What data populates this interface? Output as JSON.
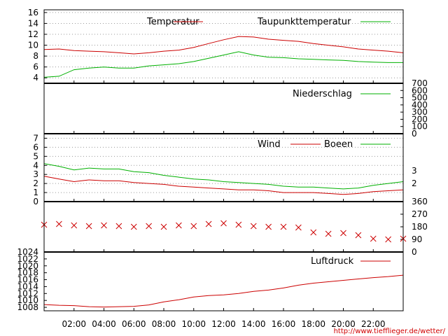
{
  "colors": {
    "red": "#cc0000",
    "green": "#00b000",
    "grid": "#9a9a9a",
    "frame": "#000000"
  },
  "credit_url": "http://www.tiefflieger.de/wetter/",
  "x_axis": {
    "range_hours": [
      0,
      24
    ],
    "tick_hours": [
      2,
      4,
      6,
      8,
      10,
      12,
      14,
      16,
      18,
      20,
      22
    ],
    "tick_labels": [
      "02:00",
      "04:00",
      "06:00",
      "08:00",
      "10:00",
      "12:00",
      "14:00",
      "16:00",
      "18:00",
      "20:00",
      "22:00"
    ]
  },
  "chart_data": [
    {
      "type": "line",
      "id": "temperature",
      "y_range": [
        3,
        16.5
      ],
      "y_ticks": [
        4,
        6,
        8,
        10,
        12,
        14,
        16
      ],
      "y_tick_labels": [
        "4",
        "6",
        "8",
        "10",
        "12",
        "14",
        "16"
      ],
      "grid": true,
      "legend_position": "top",
      "series": [
        {
          "name": "Temperatur",
          "color": "#cc0000",
          "x": [
            0,
            1,
            2,
            3,
            4,
            5,
            6,
            7,
            8,
            9,
            10,
            11,
            12,
            13,
            14,
            15,
            16,
            17,
            18,
            19,
            20,
            21,
            22,
            23,
            24
          ],
          "y": [
            9.2,
            9.3,
            9.0,
            8.9,
            8.8,
            8.6,
            8.4,
            8.6,
            8.9,
            9.1,
            9.6,
            10.3,
            11.0,
            11.6,
            11.5,
            11.1,
            10.9,
            10.7,
            10.3,
            10.0,
            9.7,
            9.3,
            9.1,
            8.9,
            8.6
          ]
        },
        {
          "name": "Taupunkttemperatur",
          "color": "#00b000",
          "x": [
            0,
            1,
            2,
            3,
            4,
            5,
            6,
            7,
            8,
            9,
            10,
            11,
            12,
            13,
            14,
            15,
            16,
            17,
            18,
            19,
            20,
            21,
            22,
            23,
            24
          ],
          "y": [
            4.1,
            4.3,
            5.5,
            5.8,
            6.0,
            5.8,
            5.8,
            6.2,
            6.4,
            6.6,
            7.0,
            7.6,
            8.2,
            8.8,
            8.2,
            7.8,
            7.7,
            7.5,
            7.4,
            7.3,
            7.2,
            7.0,
            6.9,
            6.8,
            6.8
          ]
        }
      ]
    },
    {
      "type": "line",
      "id": "precipitation",
      "y_range": [
        0,
        700
      ],
      "y_ticks": [
        0,
        100,
        200,
        300,
        400,
        500,
        600,
        700
      ],
      "y_tick_labels": [
        "0",
        "100",
        "200",
        "300",
        "400",
        "500",
        "600",
        "700"
      ],
      "legend_position": "top-right",
      "series": [
        {
          "name": "Niederschlag",
          "color": "#00b000",
          "x": [
            0,
            24
          ],
          "y": [
            0,
            0
          ]
        }
      ]
    },
    {
      "type": "line",
      "id": "wind",
      "y_range": [
        0,
        7.5
      ],
      "y_ticks": [
        0,
        1,
        2,
        3,
        4,
        5,
        6,
        7
      ],
      "y_tick_labels": [
        "0",
        "1",
        "2",
        "3",
        "4",
        "5",
        "6",
        "7"
      ],
      "y2_labels": [
        "2",
        "3"
      ],
      "y2_label_values": [
        2.0,
        3.4
      ],
      "grid": true,
      "legend_position": "top",
      "series": [
        {
          "name": "Wind",
          "color": "#cc0000",
          "x": [
            0,
            1,
            2,
            3,
            4,
            5,
            6,
            7,
            8,
            9,
            10,
            11,
            12,
            13,
            14,
            15,
            16,
            17,
            18,
            19,
            20,
            21,
            22,
            23,
            24
          ],
          "y": [
            2.8,
            2.5,
            2.2,
            2.4,
            2.3,
            2.3,
            2.1,
            2.0,
            1.9,
            1.7,
            1.6,
            1.5,
            1.4,
            1.3,
            1.3,
            1.2,
            1.0,
            1.0,
            1.0,
            0.9,
            0.8,
            0.9,
            1.1,
            1.2,
            1.3
          ]
        },
        {
          "name": "Boeen",
          "color": "#00b000",
          "x": [
            0,
            1,
            2,
            3,
            4,
            5,
            6,
            7,
            8,
            9,
            10,
            11,
            12,
            13,
            14,
            15,
            16,
            17,
            18,
            19,
            20,
            21,
            22,
            23,
            24
          ],
          "y": [
            4.2,
            3.9,
            3.5,
            3.7,
            3.6,
            3.6,
            3.3,
            3.2,
            2.9,
            2.7,
            2.5,
            2.4,
            2.2,
            2.1,
            2.0,
            1.9,
            1.7,
            1.6,
            1.6,
            1.5,
            1.4,
            1.5,
            1.8,
            2.0,
            2.2
          ]
        }
      ]
    },
    {
      "type": "scatter",
      "id": "wind_direction",
      "y_range": [
        0,
        360
      ],
      "y_ticks": [
        0,
        90,
        180,
        270,
        360
      ],
      "y_tick_labels": [
        "0",
        "90",
        "180",
        "270",
        "360"
      ],
      "marker": "x",
      "series": [
        {
          "color": "#cc0000",
          "x": [
            0,
            1,
            2,
            3,
            4,
            5,
            6,
            7,
            8,
            9,
            10,
            11,
            12,
            13,
            14,
            15,
            16,
            17,
            18,
            19,
            20,
            21,
            22,
            23,
            24
          ],
          "y": [
            195,
            200,
            190,
            185,
            190,
            185,
            180,
            185,
            180,
            190,
            185,
            200,
            205,
            195,
            185,
            180,
            180,
            175,
            140,
            130,
            135,
            120,
            95,
            90,
            95
          ]
        }
      ]
    },
    {
      "type": "line",
      "id": "pressure",
      "y_range": [
        1007,
        1024
      ],
      "y_ticks": [
        1008,
        1010,
        1012,
        1014,
        1016,
        1018,
        1020,
        1022,
        1024
      ],
      "y_tick_labels": [
        "1008",
        "1010",
        "1012",
        "1014",
        "1016",
        "1018",
        "1020",
        "1022",
        "1024"
      ],
      "legend_position": "top-right",
      "series": [
        {
          "name": "Luftdruck",
          "color": "#cc0000",
          "x": [
            0,
            1,
            2,
            3,
            4,
            5,
            6,
            7,
            8,
            9,
            10,
            11,
            12,
            13,
            14,
            15,
            16,
            17,
            18,
            19,
            20,
            21,
            22,
            23,
            24
          ],
          "y": [
            1008.8,
            1008.6,
            1008.5,
            1008.2,
            1008.1,
            1008.2,
            1008.3,
            1008.7,
            1009.6,
            1010.2,
            1011.0,
            1011.4,
            1011.6,
            1012.0,
            1012.6,
            1013.0,
            1013.6,
            1014.4,
            1015.0,
            1015.4,
            1015.8,
            1016.2,
            1016.6,
            1016.9,
            1017.3
          ]
        }
      ]
    }
  ]
}
